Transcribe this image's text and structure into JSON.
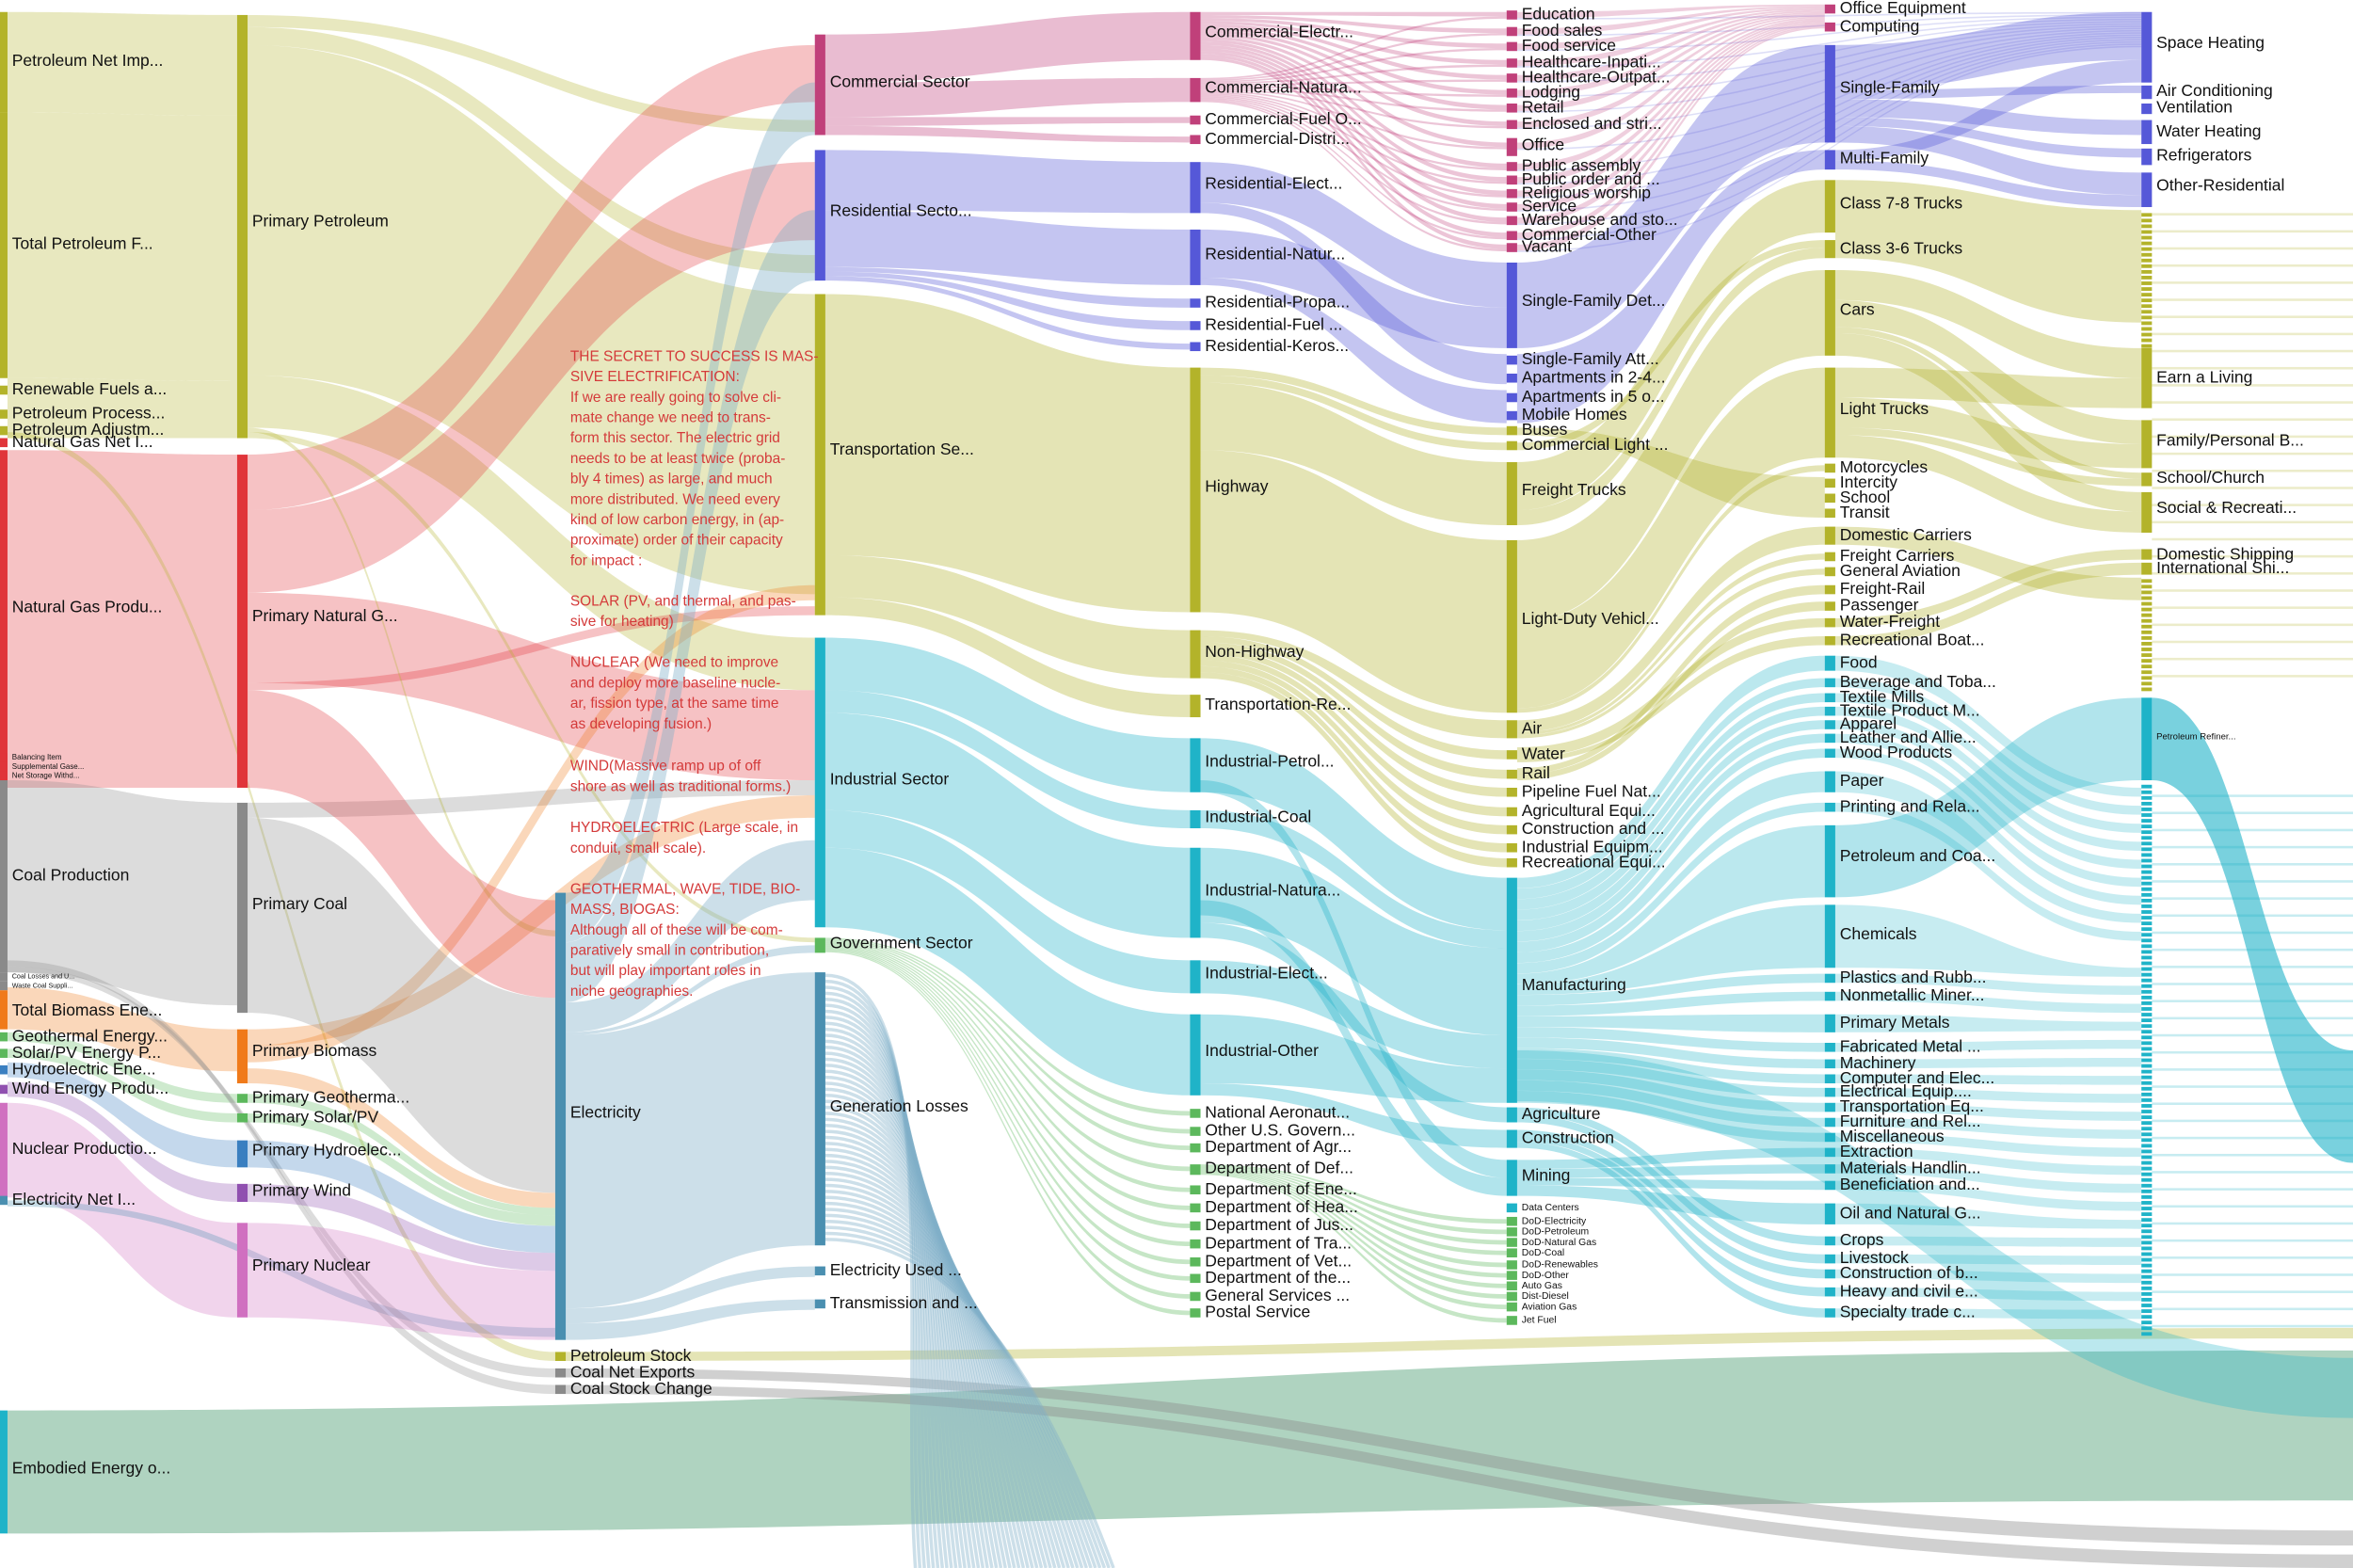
{
  "columns": [
    [
      "Petroleum Net Imp...",
      "Total Petroleum F...",
      "Renewable Fuels a...",
      "Petroleum Process...",
      "Petroleum Adjustm...",
      "Natural Gas Net I...",
      "Natural Gas Produ...",
      "Balancing Item",
      "Supplemental Gase...",
      "Net Storage Withd...",
      "Coal Production",
      "Coal Losses and U...",
      "Waste Coal Suppli...",
      "Total Biomass Ene...",
      "Geothermal Energy...",
      "Solar/PV Energy P...",
      "Hydroelectric Ene...",
      "Wind Energy Produ...",
      "Nuclear Productio...",
      "Electricity Net I...",
      "Embodied Energy o..."
    ],
    [
      "Primary Petroleum",
      "Primary Natural G...",
      "Primary Coal",
      "Primary Biomass",
      "Primary Geotherma...",
      "Primary Solar/PV",
      "Primary Hydroelec...",
      "Primary Wind",
      "Primary Nuclear"
    ],
    [
      "Electricity",
      "Petroleum Stock",
      "Coal Net Exports",
      "Coal Stock Change"
    ],
    [
      "Commercial Sector",
      "Residential Secto...",
      "Transportation Se...",
      "Industrial Sector",
      "Government Sector",
      "Generation Losses",
      "Electricity Used ...",
      "Transmission and ..."
    ],
    [
      "Commercial-Electr...",
      "Commercial-Natura...",
      "Commercial-Fuel O...",
      "Commercial-Distri...",
      "Residential-Elect...",
      "Residential-Natur...",
      "Residential-Propa...",
      "Residential-Fuel ...",
      "Residential-Keros...",
      "Highway",
      "Non-Highway",
      "Transportation-Re...",
      "Industrial-Petrol...",
      "Industrial-Coal",
      "Industrial-Natura...",
      "Industrial-Elect...",
      "Industrial-Other",
      "National Aeronaut...",
      "Other U.S. Govern...",
      "Department of Agr...",
      "Department of Def...",
      "Department of Ene...",
      "Department of Hea...",
      "Department of Jus...",
      "Department of Tra...",
      "Department of Vet...",
      "Department of the...",
      "General Services ...",
      "Postal Service"
    ],
    [
      "Education",
      "Food sales",
      "Food service",
      "Healthcare-Inpati...",
      "Healthcare-Outpat...",
      "Lodging",
      "Retail",
      "Enclosed and stri...",
      "Office",
      "Public assembly",
      "Public order and ...",
      "Religious worship",
      "Service",
      "Warehouse and sto...",
      "Commercial-Other",
      "Vacant",
      "Single-Family Det...",
      "Single-Family Att...",
      "Apartments in 2-4...",
      "Apartments in 5 o...",
      "Mobile Homes",
      "Buses",
      "Commercial Light ...",
      "Freight Trucks",
      "Light-Duty Vehicl...",
      "Air",
      "Water",
      "Rail",
      "Pipeline Fuel Nat...",
      "Agricultural Equi...",
      "Construction and ...",
      "Industrial Equipm...",
      "Recreational Equi...",
      "Manufacturing",
      "Agriculture",
      "Construction",
      "Mining",
      "Data Centers",
      "DoD-Electricity",
      "DoD-Petroleum",
      "DoD-Natural Gas",
      "DoD-Coal",
      "DoD-Renewables",
      "DoD-Other",
      "Auto Gas",
      "Dist-Diesel",
      "Aviation Gas",
      "Jet Fuel"
    ],
    [
      "Office Equipment",
      "Computing",
      "Single-Family",
      "Multi-Family",
      "Class 7-8 Trucks",
      "Class 3-6 Trucks",
      "Cars",
      "Light Trucks",
      "Motorcycles",
      "Intercity",
      "School",
      "Transit",
      "Domestic Carriers",
      "Freight Carriers",
      "General Aviation",
      "Freight-Rail",
      "Passenger",
      "Water-Freight",
      "Recreational Boat...",
      "Food",
      "Beverage and Toba...",
      "Textile Mills",
      "Textile Product M...",
      "Apparel",
      "Leather and Allie...",
      "Wood Products",
      "Paper",
      "Printing and Rela...",
      "Petroleum and Coa...",
      "Chemicals",
      "Plastics and Rubb...",
      "Nonmetallic Miner...",
      "Primary Metals",
      "Fabricated Metal ...",
      "Machinery",
      "Computer and Elec...",
      "Electrical Equip....",
      "Transportation Eq...",
      "Furniture and Rel...",
      "Miscellaneous",
      "Extraction",
      "Materials Handlin...",
      "Beneficiation and...",
      "Oil and Natural G...",
      "Crops",
      "Livestock",
      "Construction of b...",
      "Heavy and civil e...",
      "Specialty trade c..."
    ],
    [
      "Space Heating",
      "Air Conditioning",
      "Ventilation",
      "Water Heating",
      "Refrigerators",
      "Other-Residential",
      "Earn a Living",
      "Family/Personal B...",
      "School/Church",
      "Social & Recreati...",
      "Domestic Shipping",
      "International Shi...",
      "Petroleum Refiner..."
    ]
  ],
  "annotation": {
    "paragraphs": [
      [
        "THE SECRET TO SUCCESS IS MAS-",
        "SIVE ELECTRIFICATION:",
        "If we are really going to solve cli-",
        "mate change we need to trans-",
        "form this sector.  The electric grid",
        "needs to be at least twice (proba-",
        "bly 4 times) as large, and much",
        "more distributed.  We need every",
        "kind of low carbon energy, in (ap-",
        "proximate) order of their capacity",
        "for impact :"
      ],
      [
        "SOLAR (PV, and thermal, and pas-",
        "sive for heating)"
      ],
      [
        "NUCLEAR (We need to improve",
        "and deploy more baseline nucle-",
        "ar, fission type, at the same time",
        "as developing fusion.)"
      ],
      [
        "WIND(Massive ramp up of off",
        "shore as well as traditional forms.)"
      ],
      [
        "HYDROELECTRIC (Large scale, in",
        "conduit, small scale)."
      ],
      [
        "GEOTHERMAL, WAVE, TIDE, BIO-",
        "MASS, BIOGAS:",
        "Although all of these will be com-",
        "paratively small in contribution,",
        "but will play important roles in",
        "niche geographies."
      ]
    ]
  }
}
